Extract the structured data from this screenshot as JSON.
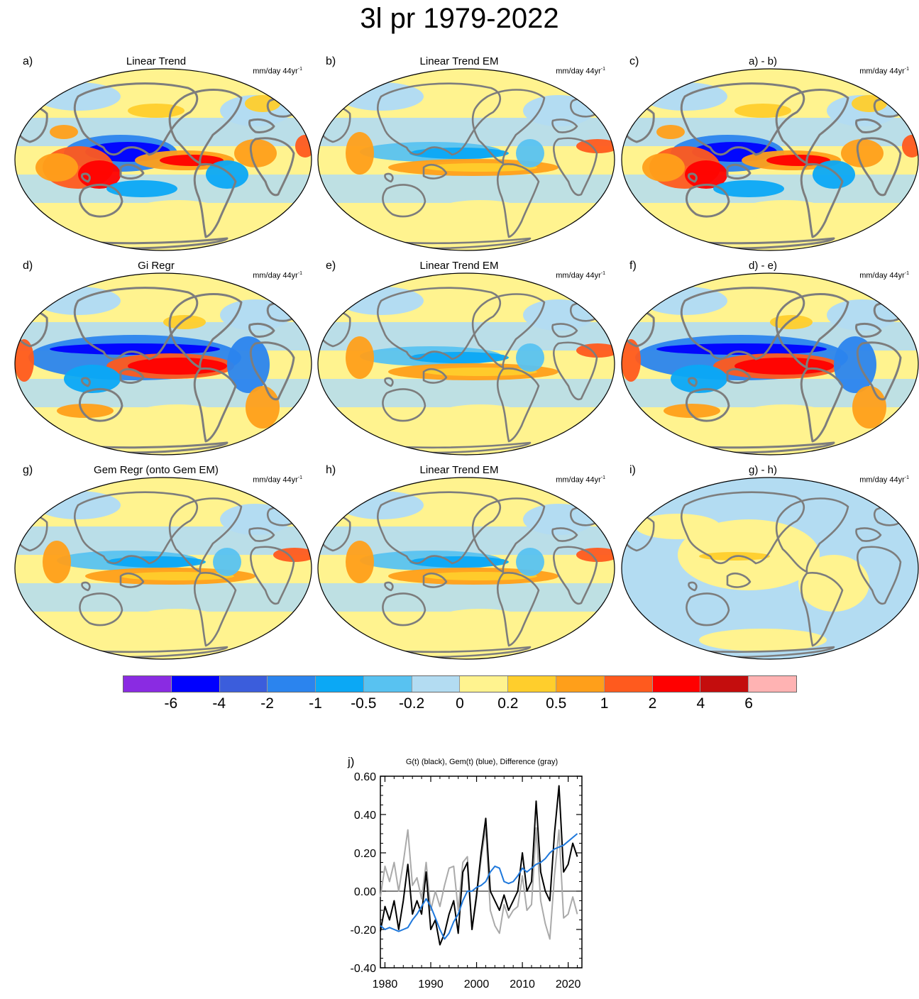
{
  "title": "3l pr 1979-2022",
  "units_base": "mm/day 44yr",
  "units_exp": "-1",
  "panels": [
    {
      "label": "a)",
      "title": "Linear Trend",
      "field": "obs"
    },
    {
      "label": "b)",
      "title": "Linear Trend EM",
      "field": "em"
    },
    {
      "label": "c)",
      "title": "a) - b)",
      "field": "obs_diff"
    },
    {
      "label": "d)",
      "title": "Gi Regr",
      "field": "enso"
    },
    {
      "label": "e)",
      "title": "Linear Trend EM",
      "field": "em"
    },
    {
      "label": "f)",
      "title": "d) - e)",
      "field": "enso_diff"
    },
    {
      "label": "g)",
      "title": "Gem Regr (onto Gem EM)",
      "field": "gem"
    },
    {
      "label": "h)",
      "title": "Linear Trend EM",
      "field": "em"
    },
    {
      "label": "i)",
      "title": "g) - h)",
      "field": "small"
    }
  ],
  "colorbar": {
    "colors": [
      "#8a2be2",
      "#0000ff",
      "#3b5ddc",
      "#2b84ee",
      "#0ba8f5",
      "#58c2f1",
      "#b3dcf2",
      "#fff38f",
      "#ffce2c",
      "#ff9f1a",
      "#ff5a1e",
      "#ff0000",
      "#c40d0d",
      "#ffb3b3"
    ],
    "labels": [
      "-6",
      "-4",
      "-2",
      "-1",
      "-0.5",
      "-0.2",
      "0",
      "0.2",
      "0.5",
      "1",
      "2",
      "4",
      "6"
    ],
    "levels": [
      -6,
      -4,
      -2,
      -1,
      -0.5,
      -0.2,
      0,
      0.2,
      0.5,
      1,
      2,
      4,
      6
    ]
  },
  "chart_data": {
    "type": "line",
    "panel_label": "j)",
    "title": "G(t)  (black), Gem(t) (blue), Difference (gray)",
    "xlim": [
      1979,
      2023
    ],
    "ylim": [
      -0.4,
      0.6
    ],
    "xticks": [
      1980,
      1990,
      2000,
      2010,
      2020
    ],
    "yticks": [
      "-0.40",
      "-0.20",
      "0.00",
      "0.20",
      "0.40",
      "0.60"
    ],
    "series": [
      {
        "name": "G(t)",
        "color": "#000000",
        "x": [
          1979,
          1980,
          1981,
          1982,
          1983,
          1984,
          1985,
          1986,
          1987,
          1988,
          1989,
          1990,
          1991,
          1992,
          1993,
          1994,
          1995,
          1996,
          1997,
          1998,
          1999,
          2000,
          2001,
          2002,
          2003,
          2004,
          2005,
          2006,
          2007,
          2008,
          2009,
          2010,
          2011,
          2012,
          2013,
          2014,
          2015,
          2016,
          2017,
          2018,
          2019,
          2020,
          2021,
          2022
        ],
        "y": [
          -0.21,
          -0.08,
          -0.15,
          -0.05,
          -0.2,
          -0.05,
          0.14,
          -0.12,
          -0.05,
          -0.12,
          0.1,
          -0.2,
          -0.15,
          -0.28,
          -0.22,
          -0.12,
          -0.05,
          -0.22,
          0.1,
          0.15,
          -0.2,
          -0.02,
          0.2,
          0.38,
          0.0,
          -0.05,
          -0.1,
          -0.02,
          -0.1,
          -0.05,
          0.0,
          0.2,
          0.0,
          0.05,
          0.47,
          0.1,
          0.0,
          -0.05,
          0.3,
          0.55,
          0.1,
          0.14,
          0.25,
          0.18
        ]
      },
      {
        "name": "Gem(t)",
        "color": "#1e78dc",
        "x": [
          1979,
          1980,
          1981,
          1982,
          1983,
          1984,
          1985,
          1986,
          1987,
          1988,
          1989,
          1990,
          1991,
          1992,
          1993,
          1994,
          1995,
          1996,
          1997,
          1998,
          1999,
          2000,
          2001,
          2002,
          2003,
          2004,
          2005,
          2006,
          2007,
          2008,
          2009,
          2010,
          2011,
          2012,
          2013,
          2014,
          2015,
          2016,
          2017,
          2018,
          2019,
          2020,
          2021,
          2022
        ],
        "y": [
          -0.18,
          -0.2,
          -0.19,
          -0.2,
          -0.21,
          -0.2,
          -0.19,
          -0.15,
          -0.12,
          -0.08,
          -0.04,
          -0.08,
          -0.14,
          -0.2,
          -0.25,
          -0.22,
          -0.16,
          -0.12,
          -0.05,
          0.0,
          0.0,
          0.02,
          0.03,
          0.05,
          0.1,
          0.13,
          0.12,
          0.05,
          0.04,
          0.05,
          0.08,
          0.12,
          0.1,
          0.12,
          0.14,
          0.15,
          0.17,
          0.2,
          0.22,
          0.23,
          0.24,
          0.26,
          0.28,
          0.3
        ]
      },
      {
        "name": "Difference",
        "color": "#aaaaaa",
        "x": [
          1979,
          1980,
          1981,
          1982,
          1983,
          1984,
          1985,
          1986,
          1987,
          1988,
          1989,
          1990,
          1991,
          1992,
          1993,
          1994,
          1995,
          1996,
          1997,
          1998,
          1999,
          2000,
          2001,
          2002,
          2003,
          2004,
          2005,
          2006,
          2007,
          2008,
          2009,
          2010,
          2011,
          2012,
          2013,
          2014,
          2015,
          2016,
          2017,
          2018,
          2019,
          2020,
          2021,
          2022
        ],
        "y": [
          -0.03,
          0.13,
          0.05,
          0.15,
          0.0,
          0.15,
          0.32,
          0.03,
          0.07,
          -0.04,
          0.15,
          -0.1,
          0.0,
          -0.08,
          0.03,
          0.12,
          0.13,
          -0.1,
          0.15,
          0.18,
          -0.2,
          -0.04,
          0.17,
          0.33,
          -0.1,
          -0.18,
          -0.22,
          -0.07,
          -0.14,
          -0.1,
          -0.08,
          0.08,
          -0.1,
          -0.07,
          0.33,
          -0.05,
          -0.17,
          -0.25,
          0.08,
          0.32,
          -0.14,
          -0.12,
          -0.03,
          -0.12
        ]
      }
    ]
  }
}
